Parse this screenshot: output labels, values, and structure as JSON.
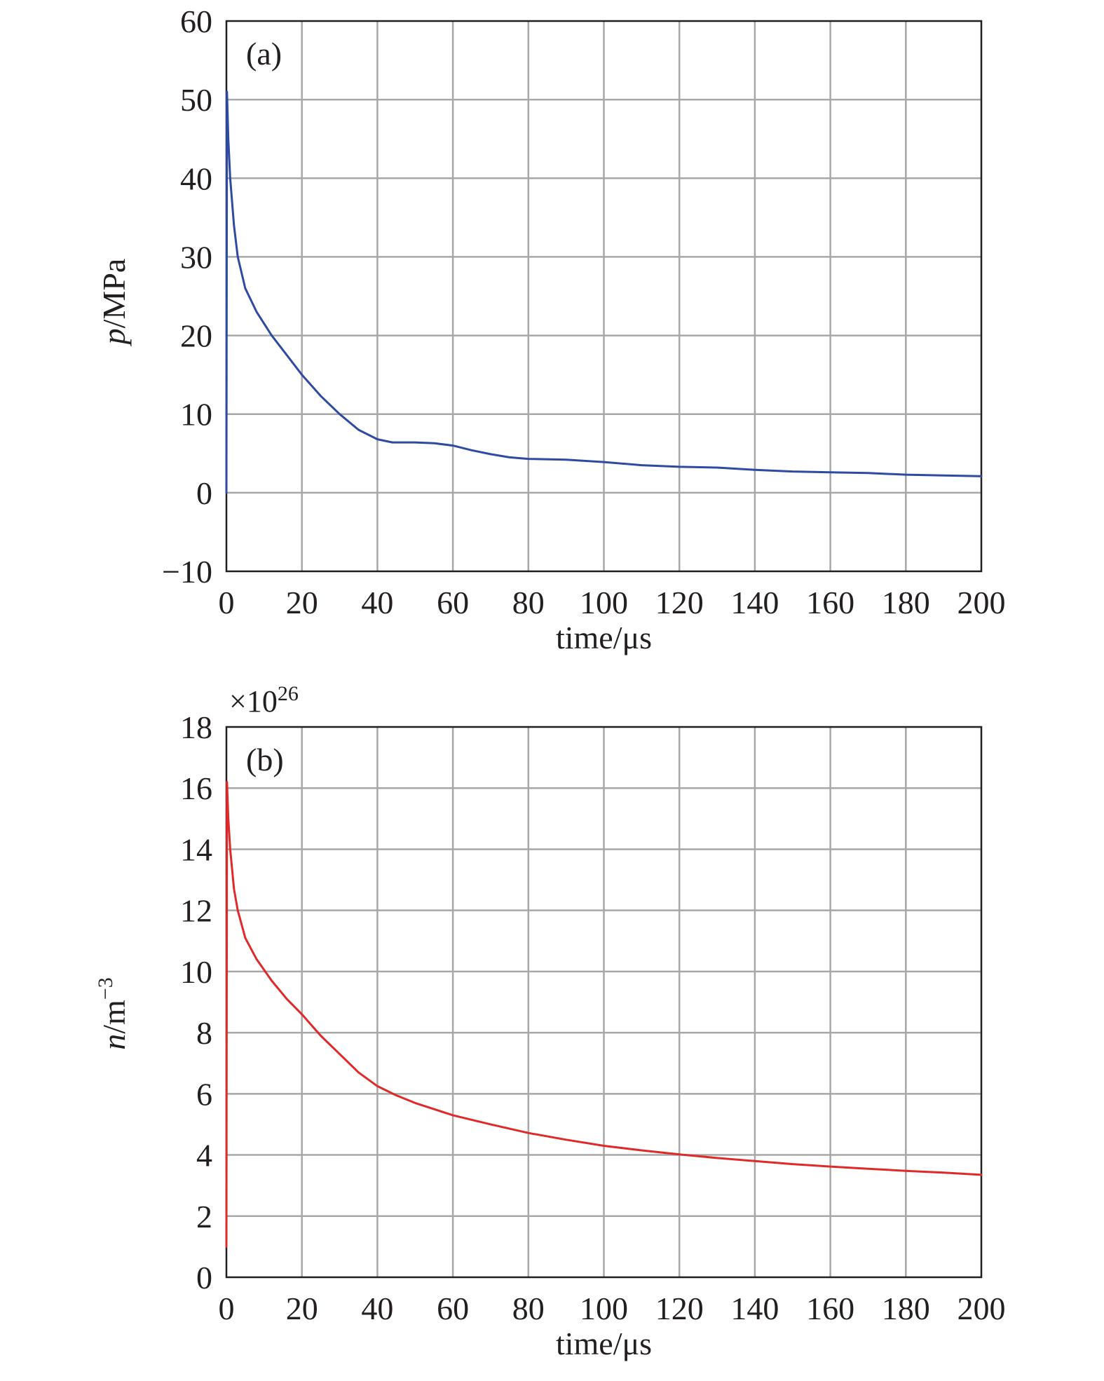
{
  "chart_data": [
    {
      "type": "line",
      "panel_label": "(a)",
      "ylabel": {
        "italic": "p",
        "rest": "/MPa"
      },
      "xlabel": "time/μs",
      "xlim": [
        0,
        200
      ],
      "ylim": [
        -10,
        60
      ],
      "x_ticks": [
        0,
        20,
        40,
        60,
        80,
        100,
        120,
        140,
        160,
        180,
        200
      ],
      "y_ticks": [
        -10,
        0,
        10,
        20,
        30,
        40,
        50,
        60
      ],
      "y_tick_labels": [
        "−10",
        "0",
        "10",
        "20",
        "30",
        "40",
        "50",
        "60"
      ],
      "grid": true,
      "series": [
        {
          "color": "#2e4aa3",
          "x": [
            0,
            0.02,
            0.15,
            0.5,
            1,
            2,
            3,
            5,
            8,
            12,
            16,
            20,
            25,
            30,
            35,
            40,
            44,
            50,
            55,
            60,
            65,
            70,
            75,
            80,
            90,
            100,
            110,
            120,
            130,
            140,
            150,
            160,
            170,
            180,
            190,
            200
          ],
          "y": [
            0,
            7,
            51,
            45,
            40,
            34,
            30,
            26,
            23,
            20,
            17.5,
            15,
            12.3,
            10,
            8,
            6.8,
            6.4,
            6.4,
            6.3,
            6,
            5.4,
            4.9,
            4.5,
            4.3,
            4.2,
            3.9,
            3.5,
            3.3,
            3.2,
            2.9,
            2.7,
            2.6,
            2.5,
            2.3,
            2.2,
            2.1
          ]
        }
      ]
    },
    {
      "type": "line",
      "panel_label": "(b)",
      "multiplier": {
        "base": "×10",
        "exponent": "26"
      },
      "ylabel": {
        "italic": "n",
        "rest": "/m",
        "sup": "−3"
      },
      "xlabel": "time/μs",
      "xlim": [
        0,
        200
      ],
      "ylim": [
        0,
        18
      ],
      "x_ticks": [
        0,
        20,
        40,
        60,
        80,
        100,
        120,
        140,
        160,
        180,
        200
      ],
      "y_ticks": [
        0,
        2,
        4,
        6,
        8,
        10,
        12,
        14,
        16,
        18
      ],
      "y_tick_labels": [
        "0",
        "2",
        "4",
        "6",
        "8",
        "10",
        "12",
        "14",
        "16",
        "18"
      ],
      "grid": true,
      "series": [
        {
          "color": "#e02a2a",
          "x": [
            0,
            0.02,
            0.15,
            0.5,
            1,
            2,
            3,
            5,
            8,
            12,
            16,
            20,
            25,
            30,
            35,
            40,
            45,
            50,
            60,
            70,
            80,
            90,
            100,
            110,
            120,
            130,
            140,
            150,
            160,
            170,
            180,
            190,
            200
          ],
          "y": [
            1,
            3,
            16.2,
            15,
            14,
            12.7,
            12,
            11.1,
            10.4,
            9.7,
            9.1,
            8.6,
            7.9,
            7.3,
            6.7,
            6.25,
            5.95,
            5.7,
            5.3,
            5.0,
            4.72,
            4.5,
            4.3,
            4.15,
            4.02,
            3.9,
            3.8,
            3.7,
            3.62,
            3.55,
            3.48,
            3.42,
            3.35
          ]
        }
      ]
    }
  ]
}
